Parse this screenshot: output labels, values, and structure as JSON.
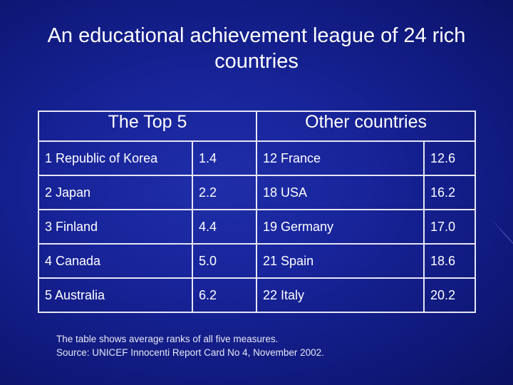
{
  "title": "An educational achievement league of 24 rich countries",
  "table": {
    "headers": {
      "top5": "The Top 5",
      "other": "Other countries"
    },
    "rows": [
      {
        "top_country": "1 Republic of Korea",
        "top_value": "1.4",
        "other_country": "12 France",
        "other_value": "12.6"
      },
      {
        "top_country": "2 Japan",
        "top_value": "2.2",
        "other_country": "18 USA",
        "other_value": "16.2"
      },
      {
        "top_country": "3 Finland",
        "top_value": "4.4",
        "other_country": "19 Germany",
        "other_value": "17.0"
      },
      {
        "top_country": "4 Canada",
        "top_value": "5.0",
        "other_country": "21 Spain",
        "other_value": "18.6"
      },
      {
        "top_country": "5 Australia",
        "top_value": "6.2",
        "other_country": "22 Italy",
        "other_value": "20.2"
      }
    ]
  },
  "footnote": {
    "line1": "The table shows average ranks of all five measures.",
    "line2": "Source: UNICEF Innocenti Report Card No 4, November 2002."
  },
  "colors": {
    "background": "#18249a",
    "text": "#ffffff",
    "border": "#e6e6f2"
  }
}
